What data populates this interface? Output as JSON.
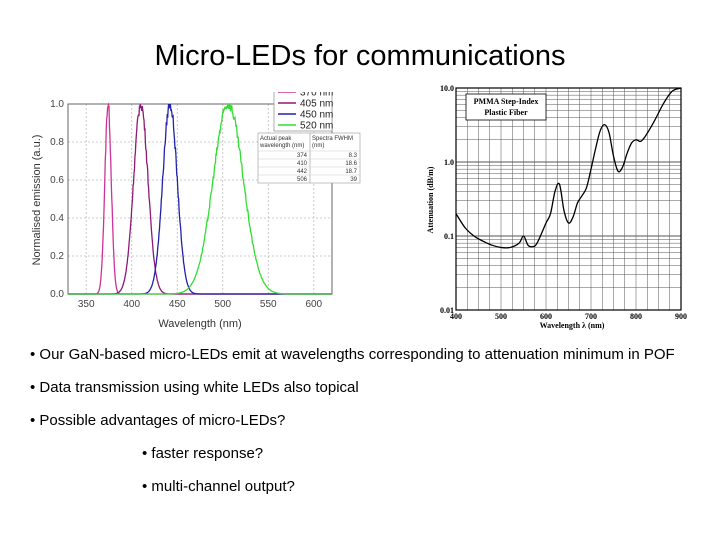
{
  "slide": {
    "title": "Micro-LEDs for communications",
    "bullets": [
      "Our GaN-based micro-LEDs emit at wavelengths corresponding to attenuation minimum in POF",
      "Data transmission using white LEDs also topical",
      "Possible advantages of micro-LEDs?"
    ],
    "sub_bullets": [
      "faster response?",
      "multi-channel output?"
    ]
  },
  "chart_data": [
    {
      "type": "line",
      "title": "",
      "xlabel": "Wavelength (nm)",
      "ylabel": "Normalised emission (a.u.)",
      "xlim": [
        330,
        620
      ],
      "ylim": [
        0,
        1.0
      ],
      "xticks": [
        "350",
        "400",
        "450",
        "500",
        "550",
        "600"
      ],
      "yticks": [
        "0.0",
        "0.2",
        "0.4",
        "0.6",
        "0.8",
        "1.0"
      ],
      "grid": true,
      "legend_placement": "top-right",
      "series": [
        {
          "name": "370 nm",
          "color": "#cc3399",
          "peak": 374,
          "fwhm": 8.3
        },
        {
          "name": "405 nm",
          "color": "#8b1a7a",
          "peak": 410,
          "fwhm": 18.6
        },
        {
          "name": "450 nm",
          "color": "#2222aa",
          "peak": 442,
          "fwhm": 18.7
        },
        {
          "name": "520 nm",
          "color": "#33dd33",
          "peak": 506,
          "fwhm": 39
        }
      ],
      "inset_table": {
        "headers": [
          "Actual peak wavelength (nm)",
          "Spectra FWHM (nm)"
        ],
        "rows": [
          [
            "374",
            "8.3"
          ],
          [
            "410",
            "18.6"
          ],
          [
            "442",
            "18.7"
          ],
          [
            "506",
            "39"
          ]
        ]
      }
    },
    {
      "type": "line",
      "title": "PMMA Step-Index Plastic Fiber",
      "xlabel": "Wavelength  λ  (nm)",
      "ylabel": "Attenuation  (dB/m)",
      "xlim": [
        400,
        900
      ],
      "ylim": [
        0.01,
        10
      ],
      "yscale": "log",
      "xticks": [
        "400",
        "500",
        "600",
        "700",
        "800",
        "900"
      ],
      "yticks": [
        "0.01",
        "0.1",
        "1.0",
        "10.0"
      ],
      "grid": true,
      "series": [
        {
          "name": "",
          "x": [
            400,
            420,
            440,
            460,
            480,
            500,
            520,
            540,
            550,
            560,
            570,
            580,
            600,
            610,
            620,
            630,
            640,
            650,
            660,
            670,
            680,
            690,
            700,
            710,
            720,
            730,
            740,
            750,
            760,
            770,
            780,
            790,
            800,
            810,
            820,
            840,
            860,
            880,
            900
          ],
          "y": [
            0.2,
            0.13,
            0.1,
            0.085,
            0.075,
            0.07,
            0.07,
            0.08,
            0.1,
            0.075,
            0.072,
            0.08,
            0.15,
            0.2,
            0.4,
            0.5,
            0.22,
            0.15,
            0.18,
            0.28,
            0.35,
            0.45,
            0.8,
            1.5,
            2.6,
            3.2,
            2.5,
            1.2,
            0.75,
            0.85,
            1.3,
            1.8,
            2.0,
            1.9,
            2.2,
            3.5,
            6.0,
            9.0,
            12.0
          ]
        }
      ]
    }
  ]
}
